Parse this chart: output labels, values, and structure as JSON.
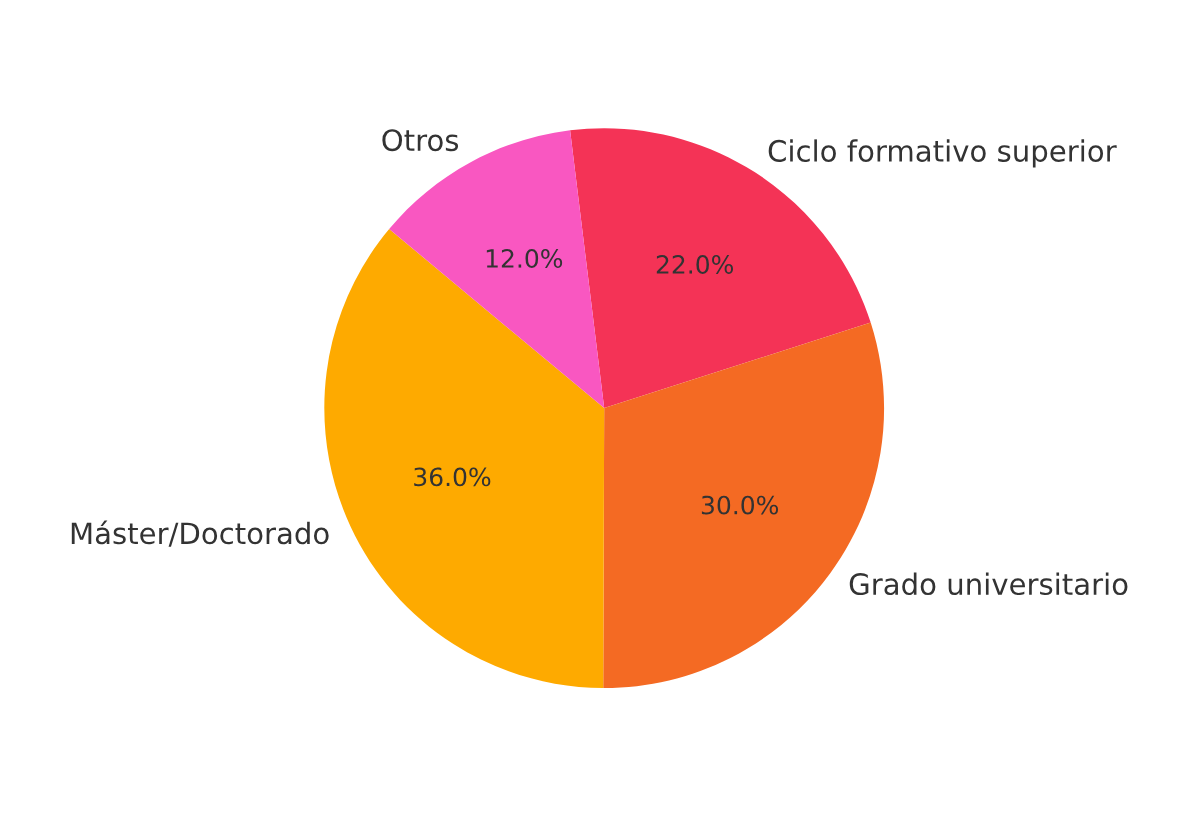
{
  "chart_data": {
    "type": "pie",
    "categories": [
      "Ciclo formativo superior",
      "Grado universitario",
      "Máster/Doctorado",
      "Otros"
    ],
    "values": [
      22.0,
      30.0,
      36.0,
      12.0
    ],
    "value_labels": [
      "22.0%",
      "30.0%",
      "36.0%",
      "12.0%"
    ],
    "colors": [
      "#f43356",
      "#f46a23",
      "#feaa00",
      "#f957c1"
    ],
    "legend": false
  }
}
